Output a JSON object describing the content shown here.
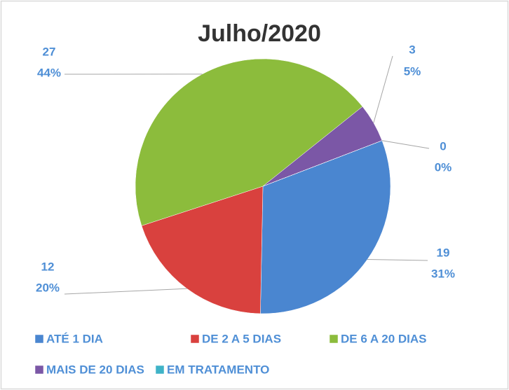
{
  "chart_data": {
    "type": "pie",
    "title": "Julho/2020",
    "categories": [
      "ATÉ 1 DIA",
      "DE 2 A 5 DIAS",
      "DE 6 A 20 DIAS",
      "MAIS DE 20 DIAS",
      "EM TRATAMENTO"
    ],
    "values": [
      19,
      12,
      27,
      3,
      0
    ],
    "percent_labels": [
      "31%",
      "20%",
      "44%",
      "5%",
      "0%"
    ],
    "colors": [
      "#4a86d0",
      "#d9413e",
      "#8cbc3c",
      "#7b57a6",
      "#3fb3c7"
    ],
    "legend": "bottom"
  }
}
